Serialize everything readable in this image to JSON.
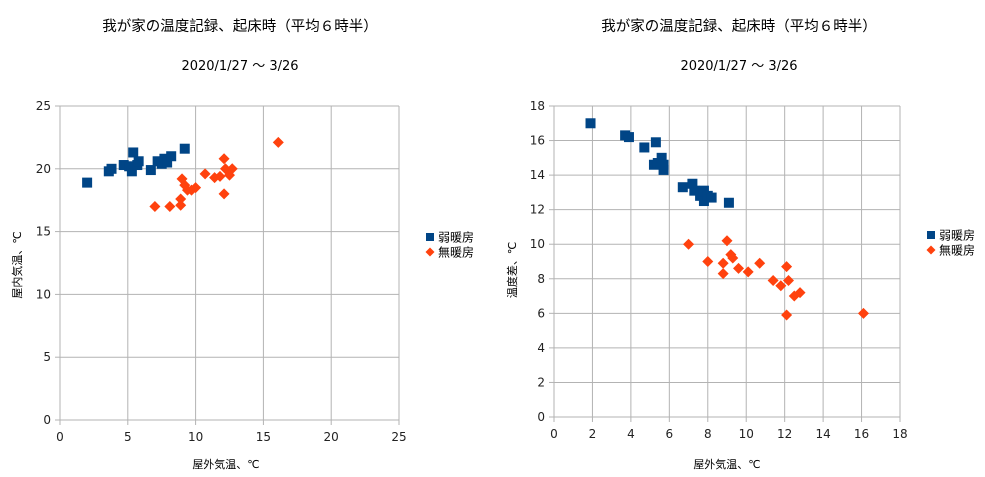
{
  "chart_data": [
    {
      "type": "scatter",
      "title": "我が家の温度記録、起床時（平均６時半）",
      "subtitle": "2020/1/27 ～ 3/26",
      "xlabel": "屋外気温、℃",
      "ylabel": "屋内気温、℃",
      "xlim": [
        0,
        25
      ],
      "ylim": [
        0,
        25
      ],
      "xticks": [
        "0",
        "5",
        "10",
        "15",
        "20",
        "25"
      ],
      "yticks": [
        "0",
        "5",
        "10",
        "15",
        "20",
        "25"
      ],
      "grid": true,
      "legend_position": "right",
      "series": [
        {
          "name": "弱暖房",
          "marker": "square",
          "color": "#004586",
          "points": [
            [
              2.0,
              18.9
            ],
            [
              3.6,
              19.8
            ],
            [
              3.8,
              20.0
            ],
            [
              4.7,
              20.3
            ],
            [
              5.1,
              20.2
            ],
            [
              5.3,
              19.8
            ],
            [
              5.4,
              21.3
            ],
            [
              5.7,
              20.3
            ],
            [
              5.8,
              20.6
            ],
            [
              6.7,
              19.9
            ],
            [
              7.2,
              20.6
            ],
            [
              7.5,
              20.4
            ],
            [
              7.7,
              20.8
            ],
            [
              7.9,
              20.5
            ],
            [
              8.2,
              21.0
            ],
            [
              9.2,
              21.6
            ]
          ]
        },
        {
          "name": "無暖房",
          "marker": "diamond",
          "color": "#ff420e",
          "points": [
            [
              7.0,
              17.0
            ],
            [
              8.1,
              17.0
            ],
            [
              8.9,
              17.1
            ],
            [
              8.9,
              17.6
            ],
            [
              9.0,
              19.2
            ],
            [
              9.2,
              18.7
            ],
            [
              9.4,
              18.3
            ],
            [
              9.7,
              18.3
            ],
            [
              10.0,
              18.5
            ],
            [
              10.7,
              19.6
            ],
            [
              11.4,
              19.3
            ],
            [
              11.8,
              19.4
            ],
            [
              12.1,
              18.0
            ],
            [
              12.1,
              20.8
            ],
            [
              12.2,
              20.0
            ],
            [
              12.5,
              19.5
            ],
            [
              12.7,
              20.0
            ],
            [
              16.1,
              22.1
            ]
          ]
        }
      ]
    },
    {
      "type": "scatter",
      "title": "我が家の温度記録、起床時（平均６時半）",
      "subtitle": "2020/1/27 ～ 3/26",
      "xlabel": "屋外気温、℃",
      "ylabel": "温度差、℃",
      "xlim": [
        0,
        18
      ],
      "ylim": [
        0,
        18
      ],
      "xticks": [
        "0",
        "2",
        "4",
        "6",
        "8",
        "10",
        "12",
        "14",
        "16",
        "18"
      ],
      "yticks": [
        "0",
        "2",
        "4",
        "6",
        "8",
        "10",
        "12",
        "14",
        "16",
        "18"
      ],
      "grid": true,
      "legend_position": "right",
      "series": [
        {
          "name": "弱暖房",
          "marker": "square",
          "color": "#004586",
          "points": [
            [
              1.9,
              17.0
            ],
            [
              3.7,
              16.3
            ],
            [
              3.9,
              16.2
            ],
            [
              4.7,
              15.6
            ],
            [
              5.3,
              15.9
            ],
            [
              5.2,
              14.6
            ],
            [
              5.4,
              14.7
            ],
            [
              5.6,
              15.0
            ],
            [
              5.7,
              14.6
            ],
            [
              5.7,
              14.3
            ],
            [
              6.7,
              13.3
            ],
            [
              7.2,
              13.5
            ],
            [
              7.3,
              13.1
            ],
            [
              7.6,
              12.8
            ],
            [
              7.8,
              13.1
            ],
            [
              7.8,
              12.5
            ],
            [
              8.0,
              12.8
            ],
            [
              8.2,
              12.7
            ],
            [
              9.1,
              12.4
            ]
          ]
        },
        {
          "name": "無暖房",
          "marker": "diamond",
          "color": "#ff420e",
          "points": [
            [
              7.0,
              10.0
            ],
            [
              8.0,
              9.0
            ],
            [
              8.8,
              8.9
            ],
            [
              8.8,
              8.3
            ],
            [
              9.0,
              10.2
            ],
            [
              9.2,
              9.4
            ],
            [
              9.3,
              9.2
            ],
            [
              9.6,
              8.6
            ],
            [
              10.1,
              8.4
            ],
            [
              10.7,
              8.9
            ],
            [
              11.4,
              7.9
            ],
            [
              11.8,
              7.6
            ],
            [
              12.1,
              5.9
            ],
            [
              12.1,
              8.7
            ],
            [
              12.2,
              7.9
            ],
            [
              12.5,
              7.0
            ],
            [
              12.8,
              7.2
            ],
            [
              16.1,
              6.0
            ]
          ]
        }
      ]
    }
  ]
}
